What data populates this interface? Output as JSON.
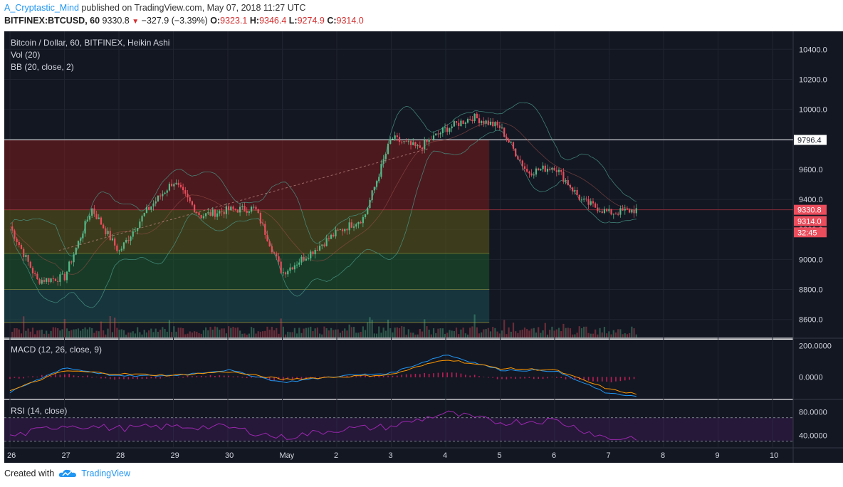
{
  "header": {
    "author": "A_Cryptastic_Mind",
    "published_text": "published on TradingView.com, May 07, 2018 11:27 UTC",
    "symbol": "BITFINEX:BTCUSD, 60",
    "last": "9330.8",
    "change": "−327.9 (−3.39%)",
    "open_label": "O:",
    "open": "9323.1",
    "high_label": "H:",
    "high": "9346.4",
    "low_label": "L:",
    "low": "9274.9",
    "close_label": "C:",
    "close": "9314.0"
  },
  "footer": {
    "created_with": "Created with",
    "brand": "TradingView"
  },
  "chart_data": [
    {
      "type": "candlestick",
      "title": "Bitcoin / Dollar, 60, BITFINEX, Heikin Ashi",
      "indicators": [
        "Vol (20)",
        "BB (20, close, 2)"
      ],
      "ylim": [
        8480,
        10520
      ],
      "y_ticks": [
        "10400.0",
        "10200.0",
        "10000.0",
        "9800.0",
        "9600.0",
        "9400.0",
        "9200.0",
        "9000.0",
        "8800.0",
        "8600.0"
      ],
      "x_ticks": [
        "26",
        "27",
        "28",
        "29",
        "30",
        "May",
        "2",
        "3",
        "4",
        "5",
        "6",
        "7",
        "8",
        "9",
        "10"
      ],
      "price_labels": {
        "level_line": "9796.4",
        "last_price": "9330.8",
        "close": "9314.0",
        "countdown": "32:45"
      },
      "colors": {
        "up": "#53b987",
        "down": "#eb4d5c",
        "background": "#131722"
      },
      "fib_zones": [
        {
          "from": 9796.4,
          "to": 9330.8,
          "color": "#7a1c1c"
        },
        {
          "from": 9330.8,
          "to": 9040,
          "color": "#5e5a18"
        },
        {
          "from": 9040,
          "to": 8800,
          "color": "#1d5a2c"
        },
        {
          "from": 8800,
          "to": 8580,
          "color": "#1b4f52"
        }
      ],
      "series": [
        {
          "name": "price",
          "x": [
            0,
            0.5,
            1,
            1.5,
            2,
            2.5,
            3,
            3.5,
            4,
            4.5,
            5,
            5.5,
            6,
            6.5,
            7,
            7.5,
            8,
            8.5,
            9,
            9.5,
            10,
            10.5,
            11,
            11.5
          ],
          "values": [
            9220,
            8860,
            8880,
            9340,
            9050,
            9320,
            9520,
            9290,
            9330,
            9340,
            8910,
            9040,
            9180,
            9280,
            9810,
            9740,
            9870,
            9950,
            9880,
            9580,
            9620,
            9390,
            9310,
            9330
          ]
        }
      ]
    },
    {
      "type": "line",
      "title": "MACD (12, 26, close, 9)",
      "y_ticks": [
        "200.0000",
        "0.0000"
      ],
      "ylim": [
        -140,
        240
      ],
      "series": [
        {
          "name": "macd",
          "x": [
            0,
            1,
            2,
            3,
            4,
            5,
            6,
            7,
            8,
            9,
            10,
            11,
            11.5
          ],
          "values": [
            -100,
            60,
            5,
            10,
            45,
            -35,
            5,
            25,
            145,
            45,
            40,
            -110,
            -120
          ]
        },
        {
          "name": "signal",
          "x": [
            0,
            1,
            2,
            3,
            4,
            5,
            6,
            7,
            8,
            9,
            10,
            11,
            11.5
          ],
          "values": [
            -90,
            40,
            20,
            10,
            35,
            -15,
            0,
            15,
            115,
            55,
            45,
            -80,
            -110
          ]
        }
      ]
    },
    {
      "type": "line",
      "title": "RSI (14, close)",
      "y_ticks": [
        "80.0000",
        "40.0000"
      ],
      "ylim": [
        20,
        100
      ],
      "bands": [
        70,
        30
      ],
      "series": [
        {
          "name": "rsi",
          "x": [
            0,
            1,
            2,
            3,
            4,
            5,
            6,
            7,
            8,
            9,
            10,
            11,
            11.5
          ],
          "values": [
            38,
            58,
            52,
            55,
            54,
            36,
            50,
            55,
            78,
            62,
            66,
            34,
            37
          ]
        }
      ]
    }
  ]
}
